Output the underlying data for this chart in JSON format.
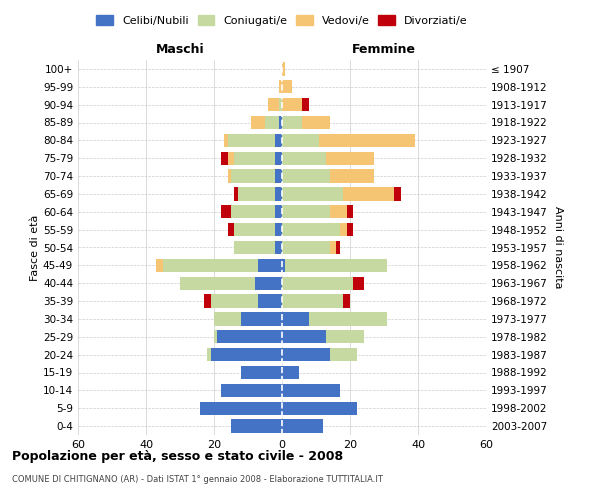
{
  "age_groups": [
    "0-4",
    "5-9",
    "10-14",
    "15-19",
    "20-24",
    "25-29",
    "30-34",
    "35-39",
    "40-44",
    "45-49",
    "50-54",
    "55-59",
    "60-64",
    "65-69",
    "70-74",
    "75-79",
    "80-84",
    "85-89",
    "90-94",
    "95-99",
    "100+"
  ],
  "birth_years": [
    "2003-2007",
    "1998-2002",
    "1993-1997",
    "1988-1992",
    "1983-1987",
    "1978-1982",
    "1973-1977",
    "1968-1972",
    "1963-1967",
    "1958-1962",
    "1953-1957",
    "1948-1952",
    "1943-1947",
    "1938-1942",
    "1933-1937",
    "1928-1932",
    "1923-1927",
    "1918-1922",
    "1913-1917",
    "1908-1912",
    "≤ 1907"
  ],
  "maschi": {
    "celibi": [
      15,
      24,
      18,
      12,
      21,
      19,
      12,
      7,
      8,
      7,
      2,
      2,
      2,
      2,
      2,
      2,
      2,
      1,
      0,
      0,
      0
    ],
    "coniugati": [
      0,
      0,
      0,
      0,
      1,
      1,
      8,
      14,
      22,
      28,
      12,
      12,
      13,
      11,
      13,
      12,
      14,
      4,
      1,
      0,
      0
    ],
    "vedovi": [
      0,
      0,
      0,
      0,
      0,
      0,
      0,
      0,
      0,
      2,
      0,
      0,
      0,
      0,
      1,
      2,
      1,
      4,
      3,
      1,
      0
    ],
    "divorziati": [
      0,
      0,
      0,
      0,
      0,
      0,
      0,
      2,
      0,
      0,
      0,
      2,
      3,
      1,
      0,
      2,
      0,
      0,
      0,
      0,
      0
    ]
  },
  "femmine": {
    "celibi": [
      12,
      22,
      17,
      5,
      14,
      13,
      8,
      0,
      0,
      1,
      0,
      0,
      0,
      0,
      0,
      0,
      0,
      0,
      0,
      0,
      0
    ],
    "coniugati": [
      0,
      0,
      0,
      0,
      8,
      11,
      23,
      18,
      21,
      30,
      14,
      17,
      14,
      18,
      14,
      13,
      11,
      6,
      0,
      0,
      0
    ],
    "vedovi": [
      0,
      0,
      0,
      0,
      0,
      0,
      0,
      0,
      0,
      0,
      2,
      2,
      5,
      15,
      13,
      14,
      28,
      8,
      6,
      3,
      1
    ],
    "divorziati": [
      0,
      0,
      0,
      0,
      0,
      0,
      0,
      2,
      3,
      0,
      1,
      2,
      2,
      2,
      0,
      0,
      0,
      0,
      2,
      0,
      0
    ]
  },
  "color_celibi": "#4472c4",
  "color_coniugati": "#c5d9a0",
  "color_vedovi": "#f6c574",
  "color_divorziati": "#c0000a",
  "title": "Popolazione per età, sesso e stato civile - 2008",
  "subtitle": "COMUNE DI CHITIGNANO (AR) - Dati ISTAT 1° gennaio 2008 - Elaborazione TUTTITALIA.IT",
  "ylabel": "Fasce di età",
  "ylabel_right": "Anni di nascita",
  "xlabel_left": "Maschi",
  "xlabel_right": "Femmine",
  "xmin": -60,
  "xmax": 60,
  "xticks": [
    -60,
    -40,
    -20,
    0,
    20,
    40,
    60
  ],
  "xtick_labels": [
    "60",
    "40",
    "20",
    "0",
    "20",
    "40",
    "60"
  ],
  "background_color": "#ffffff",
  "grid_color": "#cccccc"
}
